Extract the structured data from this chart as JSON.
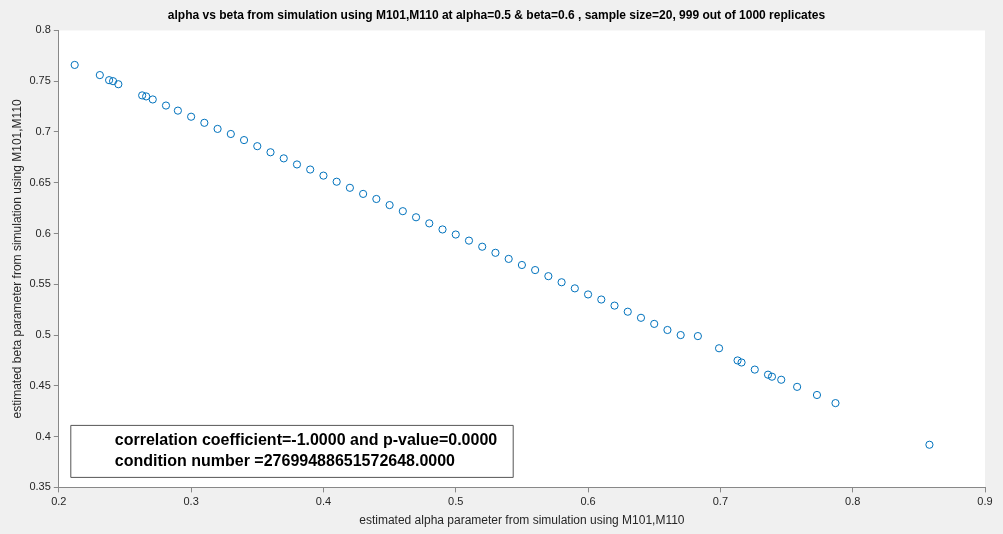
{
  "chart_data": {
    "type": "scatter",
    "title": "alpha vs beta from simulation using M101,M110 at alpha=0.5 & beta=0.6 , sample size=20, 999 out of 1000 replicates",
    "xlabel": "estimated alpha parameter from simulation using M101,M110",
    "ylabel": "estimated beta parameter from simulation using M101,M110",
    "annotations": [
      "correlation coefficient=-1.0000 and p-value=0.0000",
      "condition number =27699488651572648.0000"
    ],
    "series": [
      {
        "color": "#0072bd",
        "x": [
          0.212,
          0.231,
          0.238,
          0.241,
          0.245,
          0.263,
          0.266,
          0.271,
          0.281,
          0.29,
          0.3,
          0.31,
          0.32,
          0.33,
          0.34,
          0.35,
          0.36,
          0.37,
          0.38,
          0.39,
          0.4,
          0.41,
          0.42,
          0.43,
          0.44,
          0.45,
          0.46,
          0.47,
          0.48,
          0.49,
          0.5,
          0.51,
          0.52,
          0.53,
          0.54,
          0.55,
          0.56,
          0.57,
          0.58,
          0.59,
          0.6,
          0.61,
          0.62,
          0.63,
          0.64,
          0.65,
          0.66,
          0.67,
          0.683,
          0.699,
          0.713,
          0.716,
          0.726,
          0.736,
          0.739,
          0.746,
          0.758,
          0.773,
          0.787,
          0.858
        ],
        "values": [
          0.766,
          0.756,
          0.751,
          0.75,
          0.747,
          0.736,
          0.735,
          0.732,
          0.726,
          0.721,
          0.715,
          0.709,
          0.703,
          0.698,
          0.692,
          0.686,
          0.68,
          0.674,
          0.668,
          0.663,
          0.657,
          0.651,
          0.645,
          0.639,
          0.634,
          0.628,
          0.622,
          0.616,
          0.61,
          0.604,
          0.599,
          0.593,
          0.587,
          0.581,
          0.575,
          0.569,
          0.564,
          0.558,
          0.552,
          0.546,
          0.54,
          0.535,
          0.529,
          0.523,
          0.517,
          0.511,
          0.505,
          0.5,
          0.499,
          0.487,
          0.475,
          0.473,
          0.466,
          0.461,
          0.459,
          0.456,
          0.449,
          0.441,
          0.433,
          0.392
        ]
      }
    ],
    "marker": "circle",
    "grid": false,
    "legend": false,
    "xlim": [
      0.2,
      0.9
    ],
    "xticks": [
      0.2,
      0.3,
      0.4,
      0.5,
      0.6,
      0.7,
      0.8,
      0.9
    ],
    "ylim": [
      0.35,
      0.8
    ],
    "yticks": [
      0.35,
      0.4,
      0.45,
      0.5,
      0.55,
      0.6,
      0.65,
      0.7,
      0.75,
      0.8
    ]
  }
}
